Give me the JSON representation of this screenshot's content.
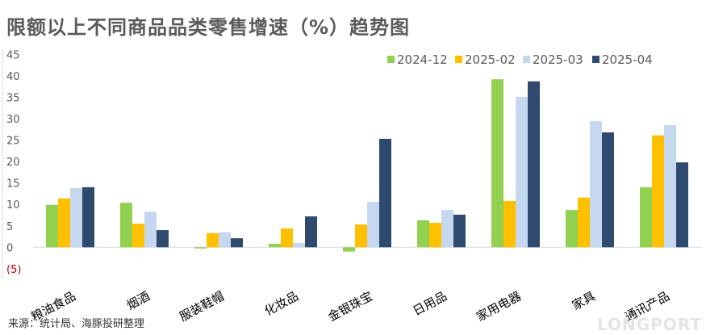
{
  "watermark": "LONGPORT",
  "chart_data": {
    "type": "bar",
    "title": "限额以上不同商品品类零售增速（%）趋势图",
    "source": "来源：统计局、海豚投研整理",
    "xlabel": "",
    "ylabel": "",
    "ylim": [
      -5,
      45
    ],
    "yticks": [
      45,
      40,
      35,
      30,
      25,
      20,
      15,
      10,
      5,
      0,
      -5
    ],
    "ytick_labels": [
      "45",
      "40",
      "35",
      "30",
      "25",
      "20",
      "15",
      "10",
      "5",
      "0",
      "(5)"
    ],
    "grid": false,
    "legend_position": "top-right",
    "categories": [
      "粮油食品",
      "烟酒",
      "服装鞋帽",
      "化妆品",
      "金银珠宝",
      "日用品",
      "家用电器",
      "家具",
      "通讯产品"
    ],
    "series": [
      {
        "name": "2024-12",
        "color": "#92D050",
        "values": [
          9.9,
          10.4,
          -0.3,
          0.8,
          -1.0,
          6.3,
          39.2,
          8.7,
          14.0
        ]
      },
      {
        "name": "2025-02",
        "color": "#FFC000",
        "values": [
          11.4,
          5.5,
          3.3,
          4.4,
          5.3,
          5.7,
          10.8,
          11.6,
          26.1
        ]
      },
      {
        "name": "2025-03",
        "color": "#C5D8EF",
        "values": [
          13.8,
          8.3,
          3.5,
          1.0,
          10.6,
          8.7,
          35.1,
          29.4,
          28.5
        ]
      },
      {
        "name": "2025-04",
        "color": "#2E4A6F",
        "values": [
          14.0,
          4.0,
          2.1,
          7.2,
          25.3,
          7.6,
          38.7,
          26.8,
          19.8
        ]
      }
    ]
  }
}
